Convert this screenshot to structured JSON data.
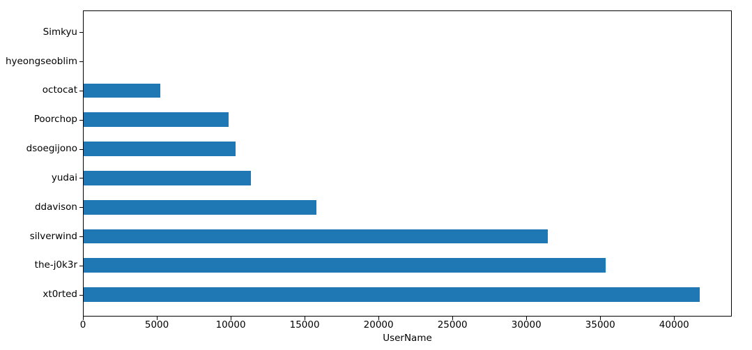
{
  "figure": {
    "background": "#ffffff"
  },
  "chart_data": {
    "type": "bar",
    "orientation": "horizontal",
    "title": "",
    "xlabel": "UserName",
    "ylabel": "",
    "categories": [
      "Simkyu",
      "hyeongseoblim",
      "octocat",
      "Poorchop",
      "dsoegijono",
      "yudai",
      "ddavison",
      "silverwind",
      "the-j0k3r",
      "xt0rted"
    ],
    "values": [
      0,
      0,
      5200,
      9800,
      10300,
      11300,
      15750,
      31400,
      35300,
      41700
    ],
    "x_ticks": [
      0,
      5000,
      10000,
      15000,
      20000,
      25000,
      30000,
      35000,
      40000
    ],
    "xlim": [
      0,
      43900
    ],
    "bar_color": "#1f77b4",
    "axis_color": "#000000",
    "grid": false,
    "legend": false,
    "bar_height_fraction": 0.5
  }
}
